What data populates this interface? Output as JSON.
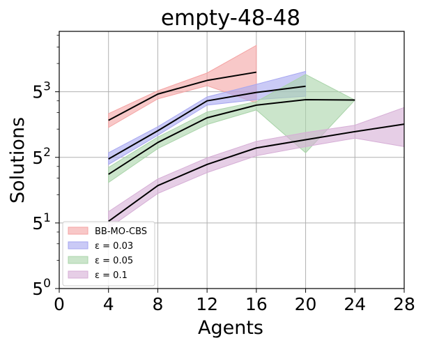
{
  "chart_data": {
    "type": "line",
    "title": "empty-48-48",
    "xlabel": "Agents",
    "ylabel": "Solutions",
    "xlim": [
      0,
      28
    ],
    "xticks": [
      0,
      4,
      8,
      12,
      16,
      20,
      24,
      28
    ],
    "xtick_labels": [
      "0",
      "4",
      "8",
      "12",
      "16",
      "20",
      "24",
      "28"
    ],
    "yscale": "log5",
    "ylim": [
      1,
      550
    ],
    "yticks": [
      1,
      5,
      25,
      125
    ],
    "ytick_labels": [
      {
        "base": "5",
        "exp": "0"
      },
      {
        "base": "5",
        "exp": "1"
      },
      {
        "base": "5",
        "exp": "2"
      },
      {
        "base": "5",
        "exp": "3"
      }
    ],
    "grid": true,
    "legend_position": "lower-left",
    "series": [
      {
        "name": "BB-MO-CBS",
        "color": "#f4a3a3",
        "x": [
          4,
          8,
          12,
          16
        ],
        "mean": [
          62,
          118,
          165,
          202
        ],
        "lower": [
          52,
          105,
          145,
          95
        ],
        "upper": [
          73,
          128,
          198,
          390
        ]
      },
      {
        "name": "ε = 0.03",
        "color": "#a6a6f0",
        "x": [
          4,
          8,
          12,
          16,
          20
        ],
        "mean": [
          24,
          48,
          100,
          123,
          143
        ],
        "lower": [
          21,
          43,
          90,
          103,
          112
        ],
        "upper": [
          28,
          53,
          110,
          150,
          206
        ]
      },
      {
        "name": "ε = 0.05",
        "color": "#a9d4a9",
        "x": [
          4,
          8,
          12,
          16,
          20,
          24
        ],
        "mean": [
          16.5,
          36,
          66,
          90,
          103,
          102
        ],
        "lower": [
          13.5,
          31,
          56,
          80,
          28,
          102
        ],
        "upper": [
          19.5,
          41,
          76,
          98,
          191,
          102
        ]
      },
      {
        "name": "ε = 0.1",
        "color": "#d6aed6",
        "x": [
          4,
          8,
          12,
          16,
          20,
          24,
          28
        ],
        "mean": [
          5.2,
          12.5,
          21,
          31.5,
          38.5,
          47,
          56.5
        ],
        "lower": [
          4.4,
          10.3,
          17.2,
          26,
          32.5,
          40,
          32.5
        ],
        "upper": [
          6.6,
          14.7,
          24.7,
          37,
          46,
          55,
          85
        ]
      }
    ]
  }
}
